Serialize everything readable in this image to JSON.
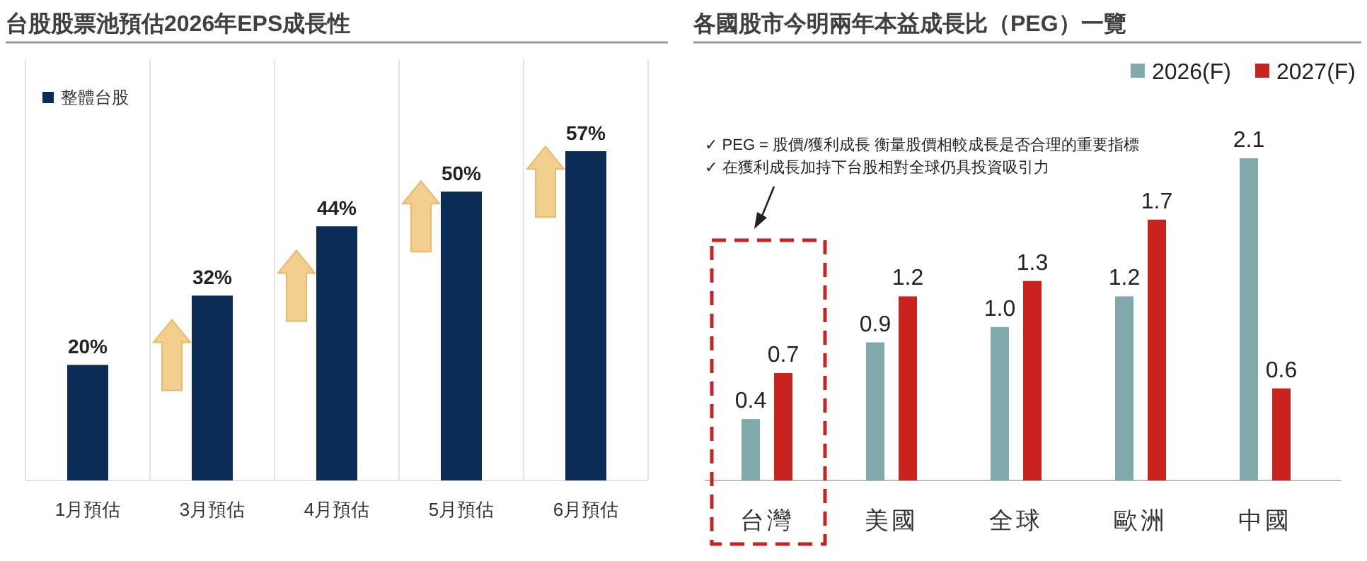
{
  "chart_data": [
    {
      "type": "bar",
      "title": "台股股票池預估2026年EPS成長性",
      "categories": [
        "1月預估",
        "3月預估",
        "4月預估",
        "5月預估",
        "6月預估"
      ],
      "series": [
        {
          "name": "整體台股",
          "color": "#0b2d55",
          "values": [
            20,
            32,
            44,
            50,
            57
          ],
          "value_labels": [
            "20%",
            "32%",
            "44%",
            "50%",
            "57%"
          ]
        }
      ],
      "legend": "top left",
      "grid": "x"
    },
    {
      "type": "bar",
      "title": "各國股市今明兩年本益成長比（PEG）一覽",
      "categories": [
        "台灣",
        "美國",
        "全球",
        "歐洲",
        "中國"
      ],
      "series": [
        {
          "name": "2026(F)",
          "color": "#7fa9ab",
          "values": [
            0.4,
            0.9,
            1.0,
            1.2,
            2.1
          ],
          "value_labels": [
            "0.4",
            "0.9",
            "1.0",
            "1.2",
            "2.1"
          ]
        },
        {
          "name": "2027(F)",
          "color": "#c8231f",
          "values": [
            0.7,
            1.2,
            1.3,
            1.7,
            0.6
          ],
          "value_labels": [
            "0.7",
            "1.2",
            "1.3",
            "1.7",
            "0.6"
          ]
        }
      ],
      "legend": "top right",
      "annotations": [
        "✓  PEG = 股價/獲利成長 衡量股價相較成長是否合理的重要指標",
        "✓  在獲利成長加持下台股相對全球仍具投資吸引力"
      ]
    }
  ]
}
